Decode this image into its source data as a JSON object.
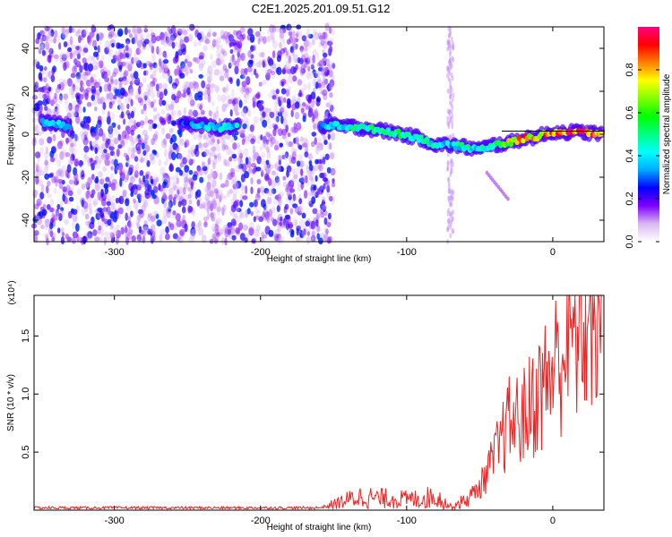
{
  "title": "C2E1.2025.201.09.51.G12",
  "chart_data": [
    {
      "type": "heatmap",
      "xlabel": "Height of straight line (km)",
      "ylabel": "Frequency (Hz)",
      "xlim": [
        -355,
        35
      ],
      "ylim": [
        -50,
        50
      ],
      "xticks": [
        -300,
        -200,
        -100,
        0
      ],
      "yticks": [
        40,
        20,
        0,
        -20,
        -40
      ],
      "colorbar": {
        "label": "Normalized spectral amplitude",
        "range": [
          0,
          1
        ],
        "ticks": [
          "0.0",
          "0.2",
          "0.4",
          "0.6",
          "0.8"
        ],
        "colors": [
          "#ffffff",
          "#d8b8f0",
          "#8000ff",
          "#0000ff",
          "#00aaff",
          "#00ffff",
          "#00ff80",
          "#00ff00",
          "#80ff00",
          "#ffff00",
          "#ff8000",
          "#ff0000",
          "#ff0080"
        ]
      },
      "ridge": {
        "x": [
          -350,
          -340,
          -330,
          -250,
          -230,
          -210,
          -160,
          -150,
          -130,
          -110,
          -90,
          -80,
          -70,
          -60,
          -50,
          -40,
          -30,
          -20,
          -10,
          0,
          10,
          20,
          35
        ],
        "frequency": [
          6,
          5,
          3,
          5,
          3,
          4,
          4,
          4,
          3,
          1,
          -2,
          -5,
          -5,
          -6,
          -7,
          -5,
          -4,
          -2,
          -1,
          1,
          1,
          1,
          0
        ],
        "amplitude": [
          0.3,
          0.45,
          0.3,
          0.3,
          0.45,
          0.4,
          0.3,
          0.45,
          0.5,
          0.55,
          0.5,
          0.45,
          0.4,
          0.5,
          0.45,
          0.6,
          0.75,
          0.85,
          0.9,
          0.95,
          0.95,
          0.95,
          1.0
        ]
      },
      "noise_region_x": [
        -355,
        -150
      ],
      "noise_strip_x": -70
    },
    {
      "type": "line",
      "xlabel": "Height of straight line (km)",
      "ylabel": "SNR (10 * v/v)",
      "y_multiplier": "(x10⁴)",
      "xlim": [
        -355,
        35
      ],
      "ylim": [
        0,
        1.85
      ],
      "xticks": [
        -300,
        -200,
        -100,
        0
      ],
      "yticks": [
        "0.5",
        "1.0",
        "1.5"
      ],
      "color": "#ee2222",
      "series": [
        {
          "x": [
            -355,
            -300,
            -250,
            -200,
            -160,
            -150,
            -140,
            -130,
            -120,
            -110,
            -100,
            -90,
            -80,
            -70,
            -60,
            -50,
            -40,
            -30,
            -20,
            -10,
            0,
            10,
            20,
            35
          ],
          "values": [
            0.02,
            0.02,
            0.02,
            0.02,
            0.02,
            0.05,
            0.09,
            0.12,
            0.1,
            0.1,
            0.09,
            0.1,
            0.12,
            0.03,
            0.08,
            0.2,
            0.45,
            0.75,
            0.8,
            1.0,
            1.2,
            1.45,
            1.6,
            1.8
          ]
        }
      ]
    }
  ]
}
